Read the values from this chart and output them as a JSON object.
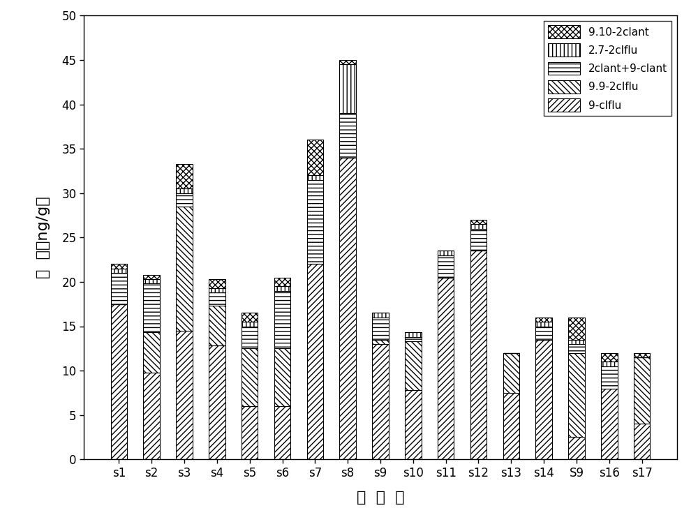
{
  "categories": [
    "s1",
    "s2",
    "s3",
    "s4",
    "s5",
    "s6",
    "s7",
    "s8",
    "s9",
    "s10",
    "s11",
    "s12",
    "s13",
    "s14",
    "S9",
    "s16",
    "s17"
  ],
  "series": [
    {
      "label": "9-clflu",
      "hatch": "////",
      "facecolor": "white",
      "edgecolor": "black",
      "values": [
        17.5,
        9.8,
        14.5,
        12.8,
        6.0,
        6.0,
        22.0,
        34.0,
        13.0,
        7.8,
        20.5,
        23.5,
        7.5,
        13.5,
        2.5,
        8.0,
        4.0
      ]
    },
    {
      "label": "9.9-2clflu",
      "hatch": "\\\\\\\\",
      "facecolor": "white",
      "edgecolor": "black",
      "values": [
        0.0,
        4.5,
        14.0,
        4.5,
        6.5,
        6.5,
        0.0,
        0.0,
        0.5,
        5.5,
        0.0,
        0.0,
        4.5,
        0.0,
        9.5,
        0.0,
        7.5
      ]
    },
    {
      "label": "2clant+9-clant",
      "hatch": "---",
      "facecolor": "white",
      "edgecolor": "black",
      "values": [
        3.5,
        5.5,
        1.5,
        1.5,
        2.5,
        6.5,
        9.5,
        5.0,
        2.5,
        0.5,
        2.5,
        2.5,
        0.0,
        1.5,
        1.0,
        2.5,
        0.0
      ]
    },
    {
      "label": "2.7-2clflu",
      "hatch": "|||",
      "facecolor": "white",
      "edgecolor": "black",
      "values": [
        0.5,
        0.5,
        0.5,
        0.5,
        0.5,
        0.5,
        0.5,
        5.5,
        0.5,
        0.5,
        0.5,
        0.5,
        0.0,
        0.5,
        0.5,
        0.5,
        0.0
      ]
    },
    {
      "label": "9.10-2clant",
      "hatch": "xxxx",
      "facecolor": "white",
      "edgecolor": "black",
      "values": [
        0.5,
        0.5,
        2.8,
        1.0,
        1.0,
        1.0,
        4.0,
        0.5,
        0.0,
        0.0,
        0.0,
        0.5,
        0.0,
        0.5,
        2.5,
        1.0,
        0.5
      ]
    }
  ],
  "xlabel_chars": [
    "采",
    " ",
    "样",
    " ",
    "点"
  ],
  "ylabel_line1": "浓  度",
  "ylabel_line2": "（ng/g）",
  "ylim": [
    0,
    50
  ],
  "yticks": [
    0,
    5,
    10,
    15,
    20,
    25,
    30,
    35,
    40,
    45,
    50
  ],
  "legend_loc": "upper right",
  "figsize": [
    10.0,
    7.48
  ],
  "dpi": 100
}
